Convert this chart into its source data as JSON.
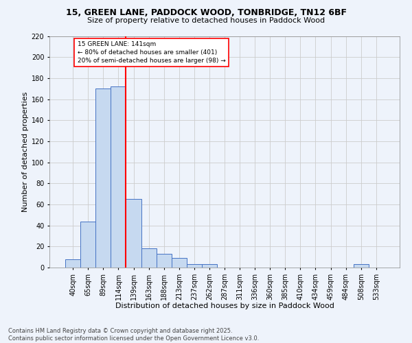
{
  "title1": "15, GREEN LANE, PADDOCK WOOD, TONBRIDGE, TN12 6BF",
  "title2": "Size of property relative to detached houses in Paddock Wood",
  "xlabel": "Distribution of detached houses by size in Paddock Wood",
  "ylabel": "Number of detached properties",
  "footer1": "Contains HM Land Registry data © Crown copyright and database right 2025.",
  "footer2": "Contains public sector information licensed under the Open Government Licence v3.0.",
  "bin_labels": [
    "40sqm",
    "65sqm",
    "89sqm",
    "114sqm",
    "139sqm",
    "163sqm",
    "188sqm",
    "213sqm",
    "237sqm",
    "262sqm",
    "287sqm",
    "311sqm",
    "336sqm",
    "360sqm",
    "385sqm",
    "410sqm",
    "434sqm",
    "459sqm",
    "484sqm",
    "508sqm",
    "533sqm"
  ],
  "bar_values": [
    8,
    44,
    170,
    172,
    65,
    18,
    13,
    9,
    3,
    3,
    0,
    0,
    0,
    0,
    0,
    0,
    0,
    0,
    0,
    3,
    0
  ],
  "bar_color": "#c6d9f0",
  "bar_edge_color": "#4472c4",
  "grid_color": "#cccccc",
  "background_color": "#eef3fb",
  "red_line_index": 4,
  "annotation_text": "15 GREEN LANE: 141sqm\n← 80% of detached houses are smaller (401)\n20% of semi-detached houses are larger (98) →",
  "annotation_box_color": "white",
  "annotation_box_edge": "red",
  "ylim": [
    0,
    220
  ],
  "yticks": [
    0,
    20,
    40,
    60,
    80,
    100,
    120,
    140,
    160,
    180,
    200,
    220
  ],
  "title1_fontsize": 9,
  "title2_fontsize": 8,
  "footer_fontsize": 6,
  "axis_label_fontsize": 8,
  "tick_fontsize": 7
}
